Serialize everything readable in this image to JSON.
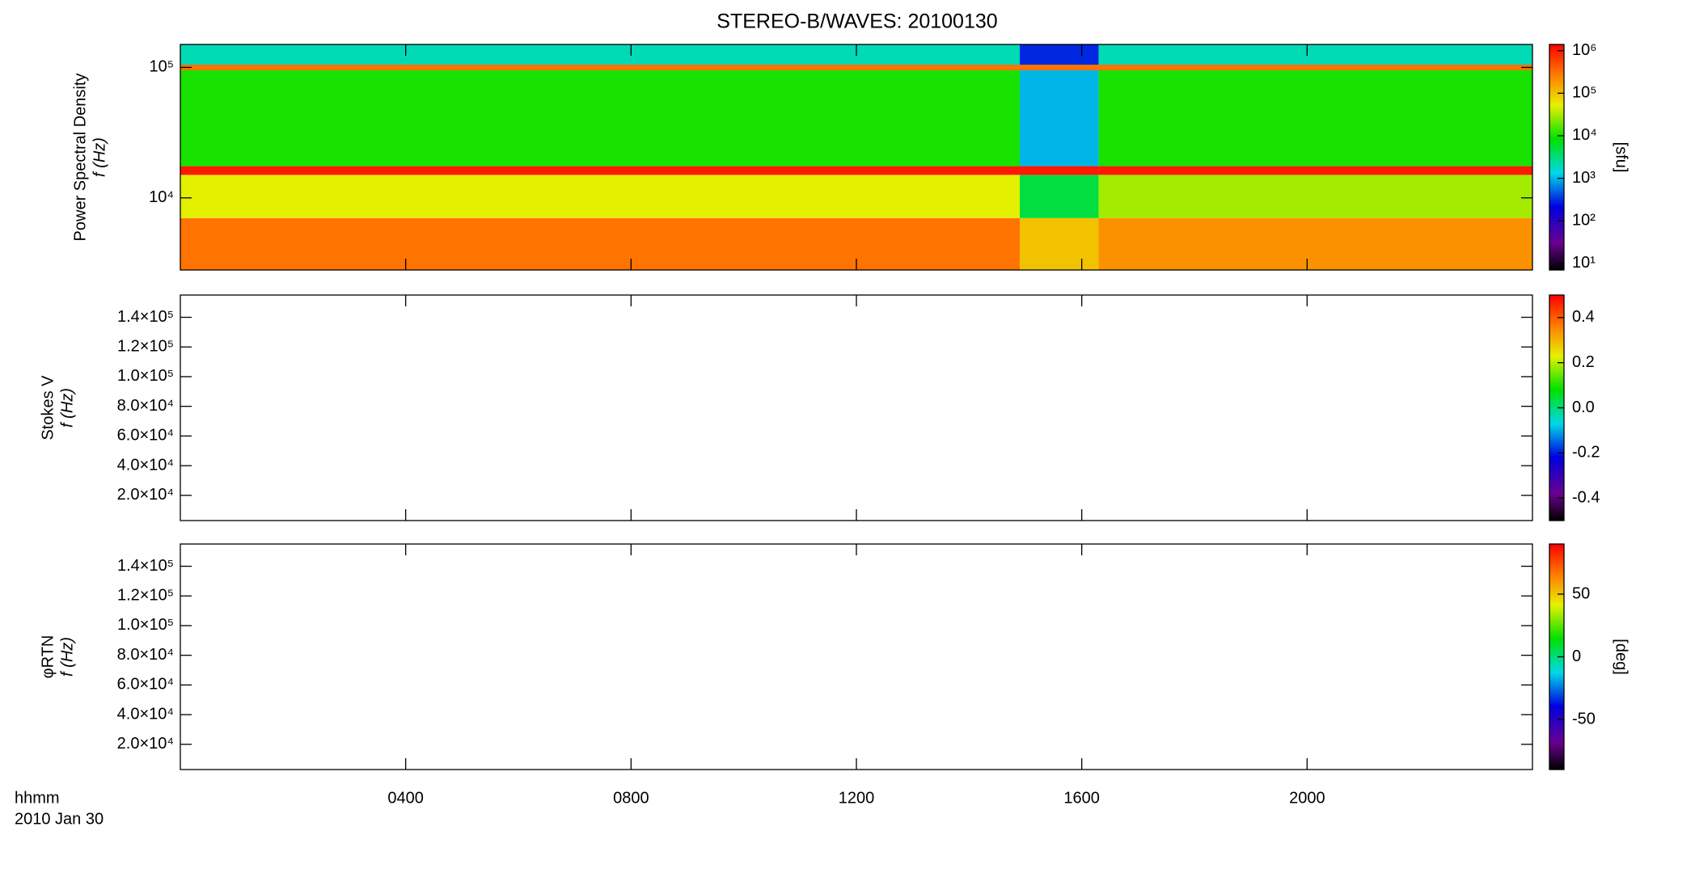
{
  "chart_data": [
    {
      "type": "heatmap",
      "title": "STEREO-B/WAVES: 20100130",
      "ylabel": "Power Spectral Density",
      "ylabel2": "f (Hz)",
      "colorbar_label": "[sfu]",
      "x_edges": [
        0,
        14.9,
        16.3,
        24
      ],
      "y_edges": [
        2800,
        7000,
        15000,
        17500,
        95000,
        105000,
        150000
      ],
      "values": [
        [
          300000,
          50000,
          1000000,
          10000,
          300000,
          2000
        ],
        [
          100000,
          5000,
          1000000,
          1000,
          300000,
          300
        ],
        [
          200000,
          30000,
          1000000,
          10000,
          300000,
          2000
        ]
      ],
      "xlim": [
        0,
        24
      ],
      "ylim": [
        2800,
        150000
      ],
      "ylog": true,
      "yticks": [
        {
          "value": 10000,
          "label": "10⁴"
        },
        {
          "value": 100000,
          "label": "10⁵"
        }
      ],
      "clim": [
        7,
        1400000
      ],
      "clog": true,
      "cticks": [
        {
          "value": 10,
          "label": "10¹"
        },
        {
          "value": 100,
          "label": "10²"
        },
        {
          "value": 1000,
          "label": "10³"
        },
        {
          "value": 10000,
          "label": "10⁴"
        },
        {
          "value": 100000,
          "label": "10⁵"
        },
        {
          "value": 1000000,
          "label": "10⁶"
        }
      ]
    },
    {
      "type": "heatmap",
      "ylabel": "Stokes V",
      "ylabel2": "f (Hz)",
      "xlim": [
        0,
        24
      ],
      "ylim": [
        3000,
        155000
      ],
      "yticks": [
        {
          "value": 20000,
          "label": "2.0×10⁴"
        },
        {
          "value": 40000,
          "label": "4.0×10⁴"
        },
        {
          "value": 60000,
          "label": "6.0×10⁴"
        },
        {
          "value": 80000,
          "label": "8.0×10⁴"
        },
        {
          "value": 100000,
          "label": "1.0×10⁵"
        },
        {
          "value": 120000,
          "label": "1.2×10⁵"
        },
        {
          "value": 140000,
          "label": "1.4×10⁵"
        }
      ],
      "clim": [
        -0.5,
        0.5
      ],
      "cticks": [
        -0.4,
        -0.2,
        {
          "value": 0,
          "label": "0.0"
        },
        0.2,
        0.4
      ]
    },
    {
      "type": "heatmap",
      "ylabel": "φRTN",
      "ylabel2": "f (Hz)",
      "colorbar_label": "[deg]",
      "xlim": [
        0,
        24
      ],
      "ylim": [
        3000,
        155000
      ],
      "yticks": [
        {
          "value": 20000,
          "label": "2.0×10⁴"
        },
        {
          "value": 40000,
          "label": "4.0×10⁴"
        },
        {
          "value": 60000,
          "label": "6.0×10⁴"
        },
        {
          "value": 80000,
          "label": "8.0×10⁴"
        },
        {
          "value": 100000,
          "label": "1.0×10⁵"
        },
        {
          "value": 120000,
          "label": "1.2×10⁵"
        },
        {
          "value": 140000,
          "label": "1.4×10⁵"
        }
      ],
      "clim": [
        -90,
        90
      ],
      "cticks": [
        -50,
        0,
        50
      ],
      "xlabel": "hhmm",
      "date_label": "2010 Jan 30",
      "xticks": [
        {
          "value": 4,
          "label": "0400"
        },
        {
          "value": 8,
          "label": "0800"
        },
        {
          "value": 12,
          "label": "1200"
        },
        {
          "value": 16,
          "label": "1600"
        },
        {
          "value": 20,
          "label": "2000"
        }
      ]
    }
  ]
}
